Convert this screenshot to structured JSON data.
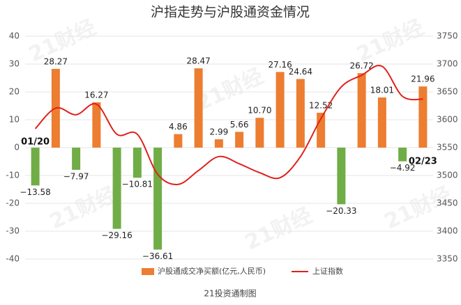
{
  "chart_data": {
    "type": "bar_line",
    "title": "沪指走势与沪股通资金情况",
    "categories": [
      null,
      null,
      null,
      null,
      null,
      null,
      null,
      null,
      null,
      null,
      null,
      null,
      null,
      null,
      null,
      null,
      null,
      null,
      null,
      null
    ],
    "annotations": [
      "01/20",
      "02/23"
    ],
    "series": [
      {
        "name": "沪股通成交净买额(亿元,人民币)",
        "type": "bar",
        "color": "#ed7d31",
        "negative_color": "#70ad47",
        "values": [
          -13.58,
          28.27,
          -7.97,
          16.27,
          -29.16,
          -10.81,
          -36.61,
          4.86,
          28.47,
          2.99,
          5.66,
          10.7,
          27.16,
          24.64,
          12.52,
          -20.33,
          26.72,
          18.01,
          -4.92,
          21.96
        ],
        "value_labels": [
          "−13.58",
          "28.27",
          "−7.97",
          "16.27",
          "−29.16",
          "−10.81",
          "−36.61",
          "4.86",
          "28.47",
          "2.99",
          "5.66",
          "10.70",
          "27.16",
          "24.64",
          "12.52",
          "−20.33",
          "26.72",
          "18.01",
          "−4.92",
          "21.96"
        ]
      },
      {
        "name": "上证指数",
        "type": "line",
        "color": "#e0201b",
        "axis": "y2",
        "values": [
          3584,
          3621,
          3609,
          3628,
          3574,
          3574,
          3502,
          3484,
          3509,
          3534,
          3521,
          3505,
          3496,
          3534,
          3602,
          3659,
          3680,
          3696,
          3642,
          3637
        ]
      }
    ],
    "ylim": [
      -40,
      40
    ],
    "yticks": [
      -40,
      -30,
      -20,
      -10,
      0,
      10,
      20,
      30,
      40
    ],
    "y2lim": [
      3350,
      3750
    ],
    "y2ticks": [
      3350,
      3400,
      3450,
      3500,
      3550,
      3600,
      3650,
      3700,
      3750
    ],
    "grid": true,
    "legend": "bottom",
    "source": "21投资通制图",
    "watermark": "21财经"
  }
}
